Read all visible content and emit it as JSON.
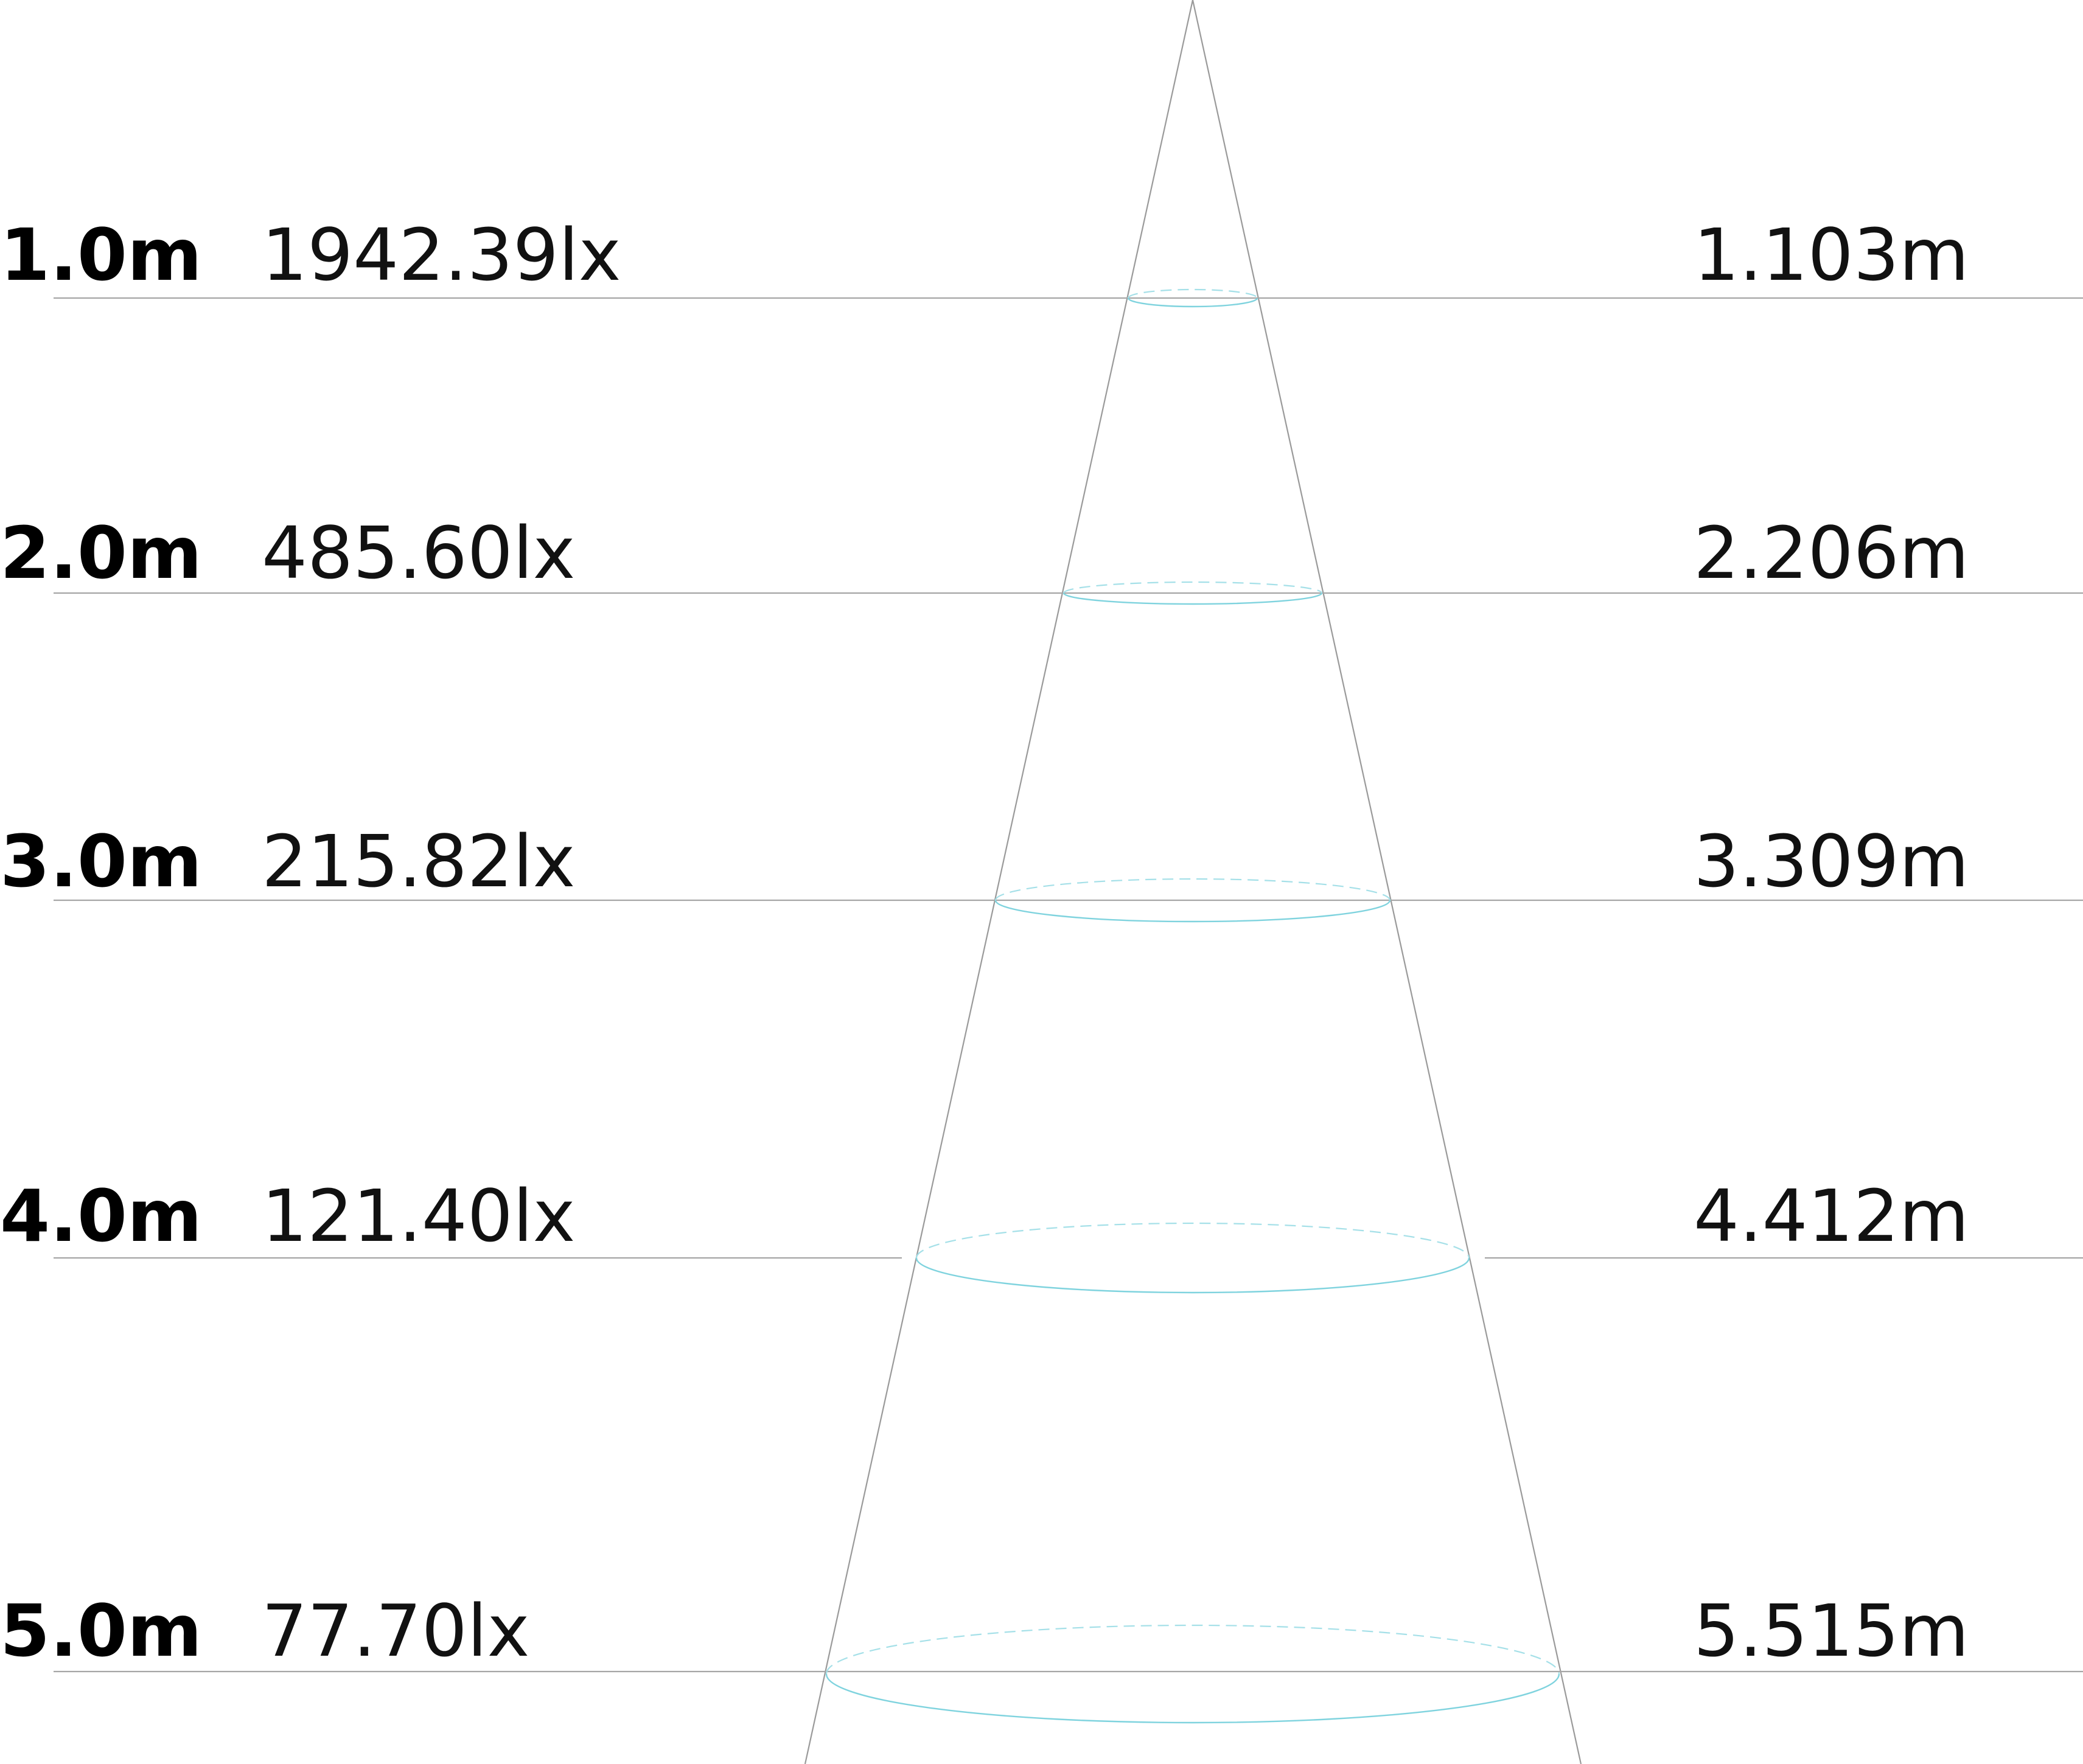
{
  "rows": [
    {
      "distance": "1.0m",
      "illuminance": "1942.39lx",
      "diameter": "1.103m"
    },
    {
      "distance": "2.0m",
      "illuminance": "485.60lx",
      "diameter": "2.206m"
    },
    {
      "distance": "3.0m",
      "illuminance": "215.82lx",
      "diameter": "3.309m"
    },
    {
      "distance": "4.0m",
      "illuminance": "121.40lx",
      "diameter": "4.412m"
    },
    {
      "distance": "5.0m",
      "illuminance": "77.70lx",
      "diameter": "5.515m"
    }
  ],
  "colors": {
    "spot_outline": "#7fd3de",
    "guide_lines": "#a6a6a6",
    "text": "#000000"
  }
}
